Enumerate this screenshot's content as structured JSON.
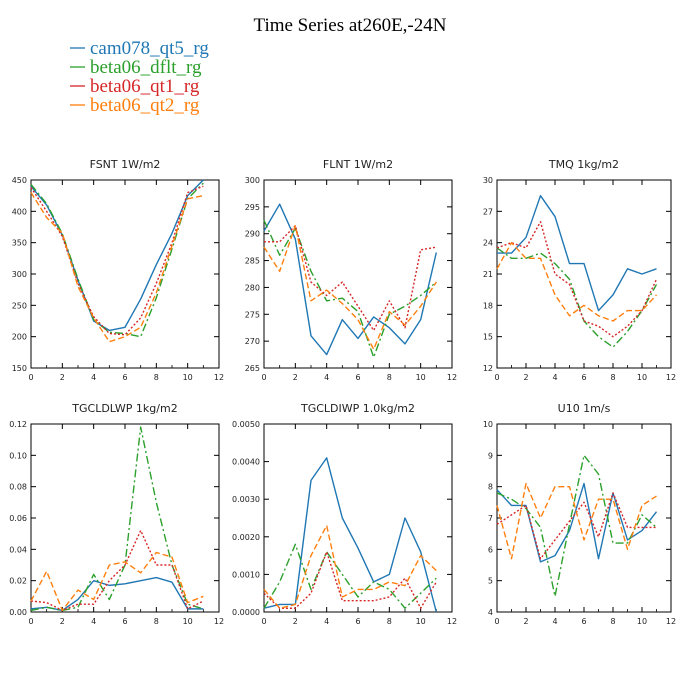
{
  "page": {
    "title": "Time Series at260E,-24N"
  },
  "legend": {
    "placement": "top-left",
    "entries": [
      {
        "label": "cam078_qt5_rg",
        "color": "#1f77b4",
        "dash": "solid"
      },
      {
        "label": "beta06_dflt_rg",
        "color": "#2ca02c",
        "dash": "dashdot"
      },
      {
        "label": "beta06_qt1_rg",
        "color": "#d62728",
        "dash": "dotted"
      },
      {
        "label": "beta06_qt2_rg",
        "color": "#ff7f0e",
        "dash": "dashed"
      }
    ]
  },
  "chart_data": [
    {
      "type": "line",
      "title": "FSNT   1W/m2",
      "x": [
        0,
        1,
        2,
        3,
        4,
        5,
        6,
        7,
        8,
        9,
        10,
        11
      ],
      "xlim": [
        0,
        12
      ],
      "xticks": [
        "0",
        "2",
        "4",
        "6",
        "8",
        "10",
        "12"
      ],
      "ylim": [
        150,
        450
      ],
      "yticks": [
        "150",
        "200",
        "250",
        "300",
        "350",
        "400",
        "450"
      ],
      "series": [
        {
          "name": "cam078_qt5_rg",
          "values": [
            440,
            410,
            362,
            290,
            225,
            210,
            215,
            260,
            315,
            365,
            425,
            450
          ]
        },
        {
          "name": "beta06_dflt_rg",
          "values": [
            443,
            412,
            364,
            292,
            227,
            207,
            205,
            200,
            262,
            340,
            420,
            445
          ]
        },
        {
          "name": "beta06_qt1_rg",
          "values": [
            438,
            400,
            360,
            285,
            232,
            205,
            203,
            230,
            285,
            350,
            430,
            440
          ]
        },
        {
          "name": "beta06_qt2_rg",
          "values": [
            430,
            390,
            365,
            280,
            230,
            192,
            200,
            215,
            270,
            345,
            420,
            425
          ]
        }
      ]
    },
    {
      "type": "line",
      "title": "FLNT   1W/m2",
      "x": [
        0,
        1,
        2,
        3,
        4,
        5,
        6,
        7,
        8,
        9,
        10,
        11
      ],
      "xlim": [
        0,
        12
      ],
      "xticks": [
        "0",
        "2",
        "4",
        "6",
        "8",
        "10",
        "12"
      ],
      "ylim": [
        265,
        300
      ],
      "yticks": [
        "265",
        "270",
        "275",
        "280",
        "285",
        "290",
        "295",
        "300"
      ],
      "series": [
        {
          "name": "cam078_qt5_rg",
          "values": [
            290.5,
            295.5,
            289,
            271,
            267.5,
            274,
            270.5,
            274.5,
            272.5,
            269.5,
            274,
            286.5
          ]
        },
        {
          "name": "beta06_dflt_rg",
          "values": [
            292.5,
            286,
            291,
            283,
            277.5,
            278,
            275.5,
            267,
            275,
            276.5,
            278.5,
            281
          ]
        },
        {
          "name": "beta06_qt1_rg",
          "values": [
            288.5,
            288.5,
            291.5,
            281,
            278.5,
            281,
            276.5,
            272,
            277.5,
            272.5,
            287,
            287.5
          ]
        },
        {
          "name": "beta06_qt2_rg",
          "values": [
            287.5,
            283,
            291.5,
            277.5,
            279.5,
            277,
            274,
            268.5,
            275.5,
            273,
            276.5,
            281
          ]
        }
      ]
    },
    {
      "type": "line",
      "title": "TMQ   1kg/m2",
      "x": [
        0,
        1,
        2,
        3,
        4,
        5,
        6,
        7,
        8,
        9,
        10,
        11
      ],
      "xlim": [
        0,
        12
      ],
      "xticks": [
        "0",
        "2",
        "4",
        "6",
        "8",
        "10",
        "12"
      ],
      "ylim": [
        12,
        30
      ],
      "yticks": [
        "12",
        "15",
        "18",
        "21",
        "24",
        "27",
        "30"
      ],
      "series": [
        {
          "name": "cam078_qt5_rg",
          "values": [
            23,
            23,
            24.5,
            28.5,
            26.5,
            22,
            22,
            17.5,
            19,
            21.5,
            21,
            21.5
          ]
        },
        {
          "name": "beta06_dflt_rg",
          "values": [
            23.5,
            22.5,
            22.5,
            23,
            22,
            20.5,
            16.5,
            15,
            14,
            15.5,
            17.5,
            20
          ]
        },
        {
          "name": "beta06_qt1_rg",
          "values": [
            23.5,
            24,
            23.5,
            26,
            21,
            20,
            16.5,
            16,
            15,
            16,
            17.5,
            20.5
          ]
        },
        {
          "name": "beta06_qt2_rg",
          "values": [
            21.5,
            24,
            22.5,
            22.5,
            19,
            17,
            18,
            17,
            16.5,
            17.5,
            17.5,
            19
          ]
        }
      ]
    },
    {
      "type": "line",
      "title": "TGCLDLWP   1kg/m2",
      "x": [
        0,
        1,
        2,
        3,
        4,
        5,
        6,
        7,
        8,
        9,
        10,
        11
      ],
      "xlim": [
        0,
        12
      ],
      "xticks": [
        "0",
        "2",
        "4",
        "6",
        "8",
        "10",
        "12"
      ],
      "ylim": [
        0,
        0.12
      ],
      "yticks": [
        "0.00",
        "0.02",
        "0.04",
        "0.06",
        "0.08",
        "0.10",
        "0.12"
      ],
      "series": [
        {
          "name": "cam078_qt5_rg",
          "values": [
            0.002,
            0.003,
            0.001,
            0.008,
            0.02,
            0.017,
            0.018,
            0.02,
            0.022,
            0.019,
            0.002,
            0.002
          ]
        },
        {
          "name": "beta06_dflt_rg",
          "values": [
            0.001,
            0.003,
            0.001,
            0.003,
            0.024,
            0.008,
            0.03,
            0.118,
            0.07,
            0.03,
            0.005,
            0.002
          ]
        },
        {
          "name": "beta06_qt1_rg",
          "values": [
            0.007,
            0.006,
            0.001,
            0.005,
            0.005,
            0.02,
            0.03,
            0.052,
            0.03,
            0.03,
            0.002,
            0.007
          ]
        },
        {
          "name": "beta06_qt2_rg",
          "values": [
            0.007,
            0.026,
            0.001,
            0.014,
            0.008,
            0.03,
            0.032,
            0.025,
            0.038,
            0.035,
            0.006,
            0.01
          ]
        }
      ]
    },
    {
      "type": "line",
      "title": "TGCLDIWP   1.0kg/m2",
      "x": [
        0,
        1,
        2,
        3,
        4,
        5,
        6,
        7,
        8,
        9,
        10,
        11
      ],
      "xlim": [
        0,
        12
      ],
      "xticks": [
        "0",
        "2",
        "4",
        "6",
        "8",
        "10",
        "12"
      ],
      "ylim": [
        0,
        0.005
      ],
      "yticks": [
        "0.0000",
        "0.0010",
        "0.0020",
        "0.0030",
        "0.0040",
        "0.0050"
      ],
      "series": [
        {
          "name": "cam078_qt5_rg",
          "values": [
            0.0001,
            0.0002,
            0.0002,
            0.0035,
            0.0041,
            0.0025,
            0.0017,
            0.0008,
            0.001,
            0.0025,
            0.0016,
            0.0
          ]
        },
        {
          "name": "beta06_dflt_rg",
          "values": [
            0.0001,
            0.0008,
            0.0018,
            0.0006,
            0.0016,
            0.001,
            0.0004,
            0.0008,
            0.0006,
            0.0001,
            0.0005,
            0.0009
          ]
        },
        {
          "name": "beta06_qt1_rg",
          "values": [
            0.0005,
            0.0001,
            0.0001,
            0.0005,
            0.0016,
            0.0003,
            0.0003,
            0.0003,
            0.0004,
            0.0009,
            0.0001,
            0.0008
          ]
        },
        {
          "name": "beta06_qt2_rg",
          "values": [
            0.0006,
            0.0001,
            0.0002,
            0.0015,
            0.0023,
            0.0004,
            0.0006,
            0.0006,
            0.0008,
            0.0007,
            0.0015,
            0.0011
          ]
        }
      ]
    },
    {
      "type": "line",
      "title": "U10   1m/s",
      "x": [
        0,
        1,
        2,
        3,
        4,
        5,
        6,
        7,
        8,
        9,
        10,
        11
      ],
      "xlim": [
        0,
        12
      ],
      "xticks": [
        "0",
        "2",
        "4",
        "6",
        "8",
        "10",
        "12"
      ],
      "ylim": [
        4,
        10
      ],
      "yticks": [
        "4",
        "5",
        "6",
        "7",
        "8",
        "9",
        "10"
      ],
      "series": [
        {
          "name": "cam078_qt5_rg",
          "values": [
            7.9,
            7.4,
            7.4,
            5.6,
            5.8,
            6.6,
            8.1,
            5.7,
            7.8,
            6.3,
            6.6,
            7.2
          ]
        },
        {
          "name": "beta06_dflt_rg",
          "values": [
            7.8,
            7.6,
            7.3,
            6.7,
            4.5,
            6.8,
            9.0,
            8.4,
            6.2,
            6.2,
            7.1,
            6.7
          ]
        },
        {
          "name": "beta06_qt1_rg",
          "values": [
            6.8,
            7.1,
            7.4,
            5.7,
            6.3,
            6.9,
            7.5,
            6.4,
            7.8,
            6.7,
            6.7,
            6.7
          ]
        },
        {
          "name": "beta06_qt2_rg",
          "values": [
            7.4,
            5.7,
            8.1,
            7.0,
            8.0,
            8.0,
            6.3,
            7.6,
            7.6,
            6.0,
            7.4,
            7.7
          ]
        }
      ]
    }
  ]
}
